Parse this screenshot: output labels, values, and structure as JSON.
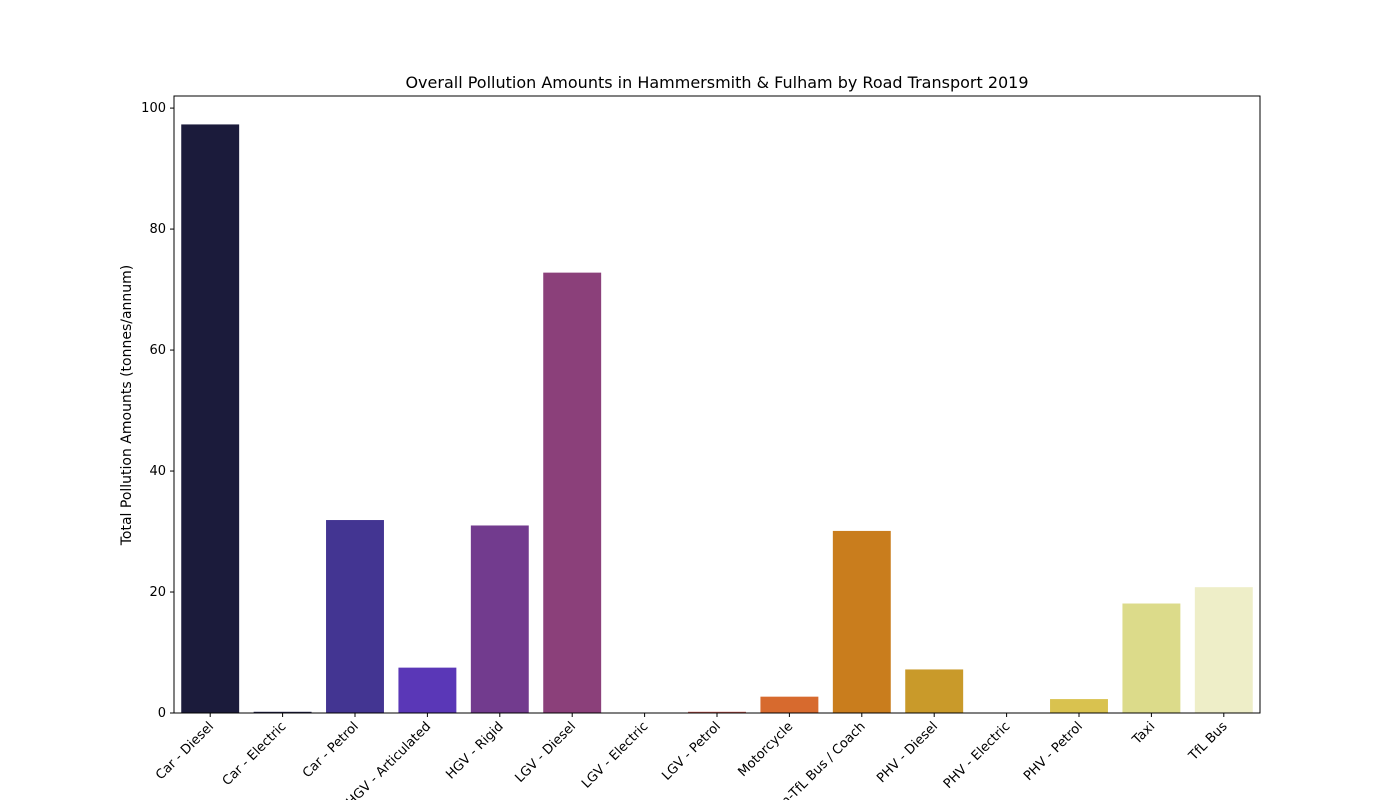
{
  "chart_data": {
    "type": "bar",
    "title": "Overall Pollution Amounts in Hammersmith & Fulham by Road Transport 2019",
    "xlabel": "",
    "ylabel": "Total Pollution Amounts (tonnes/annum)",
    "ylim": [
      0,
      102
    ],
    "yticks": [
      0,
      20,
      40,
      60,
      80,
      100
    ],
    "grid": false,
    "legend": "none",
    "categories": [
      "Car - Diesel",
      "Car - Electric",
      "Car - Petrol",
      "HGV - Articulated",
      "HGV - Rigid",
      "LGV - Diesel",
      "LGV - Electric",
      "LGV - Petrol",
      "Motorcycle",
      "Non-TfL Bus / Coach",
      "PHV - Diesel",
      "PHV - Electric",
      "PHV - Petrol",
      "Taxi",
      "TfL Bus"
    ],
    "values": [
      97.3,
      0.2,
      31.9,
      7.5,
      31.0,
      72.8,
      0.0,
      0.2,
      2.7,
      30.1,
      7.2,
      0.0,
      2.3,
      18.1,
      20.8
    ],
    "colors": [
      "#1b1b3b",
      "#22224a",
      "#433592",
      "#5a37b7",
      "#723b8e",
      "#8b407a",
      "#a54663",
      "#c1534d",
      "#d76a2e",
      "#c97d1d",
      "#c99a2a",
      "#d2b23e",
      "#d9c24f",
      "#dcdb8a",
      "#eeeec8"
    ]
  }
}
